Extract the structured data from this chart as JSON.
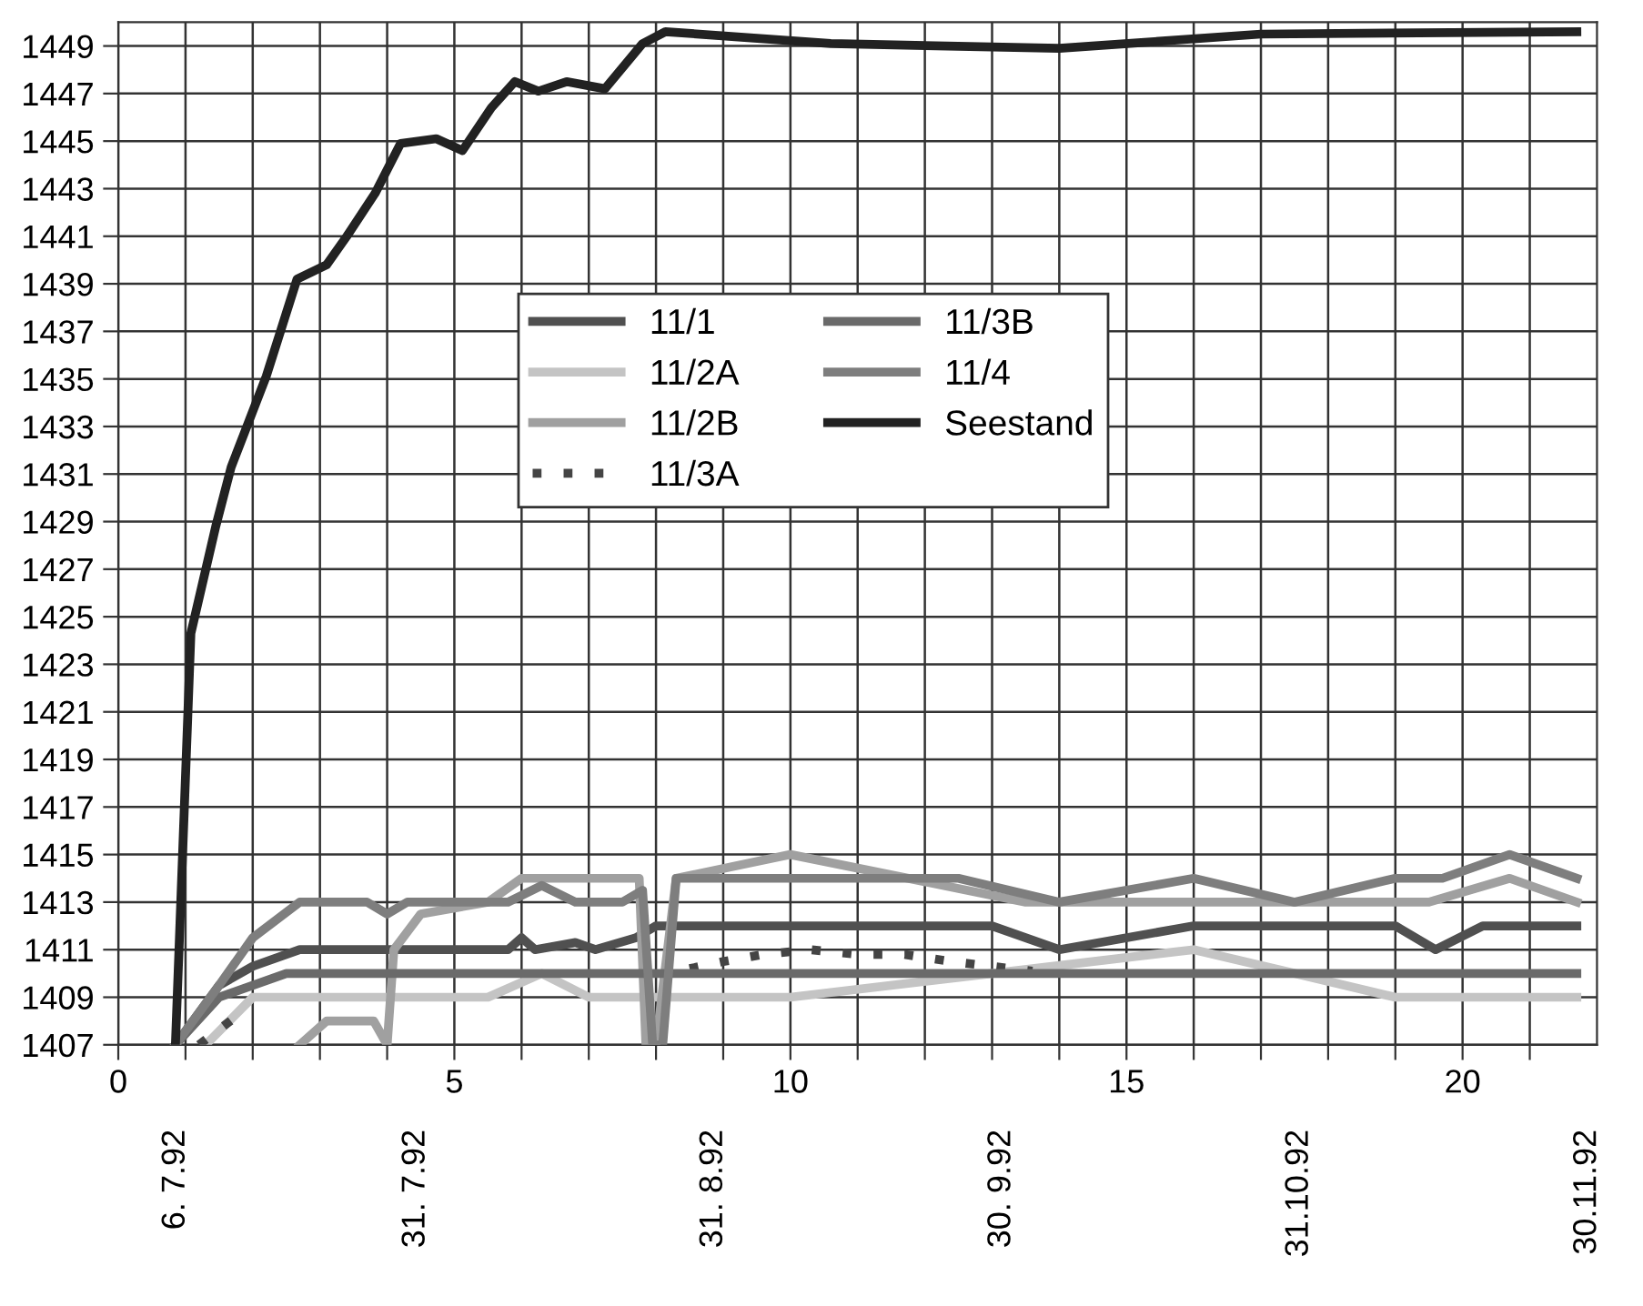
{
  "chart_data": {
    "type": "line",
    "xlim": [
      0,
      22
    ],
    "ylim": [
      1407,
      1450
    ],
    "xticks": [
      0,
      {
        "value": 1,
        "label": null
      },
      {
        "value": 2,
        "label": null
      },
      {
        "value": 3,
        "label": null
      },
      {
        "value": 4,
        "label": null
      },
      5,
      {
        "value": 6,
        "label": null
      },
      {
        "value": 7,
        "label": null
      },
      {
        "value": 8,
        "label": null
      },
      {
        "value": 9,
        "label": null
      },
      10,
      {
        "value": 11,
        "label": null
      },
      {
        "value": 12,
        "label": null
      },
      {
        "value": 13,
        "label": null
      },
      {
        "value": 14,
        "label": null
      },
      15,
      {
        "value": 16,
        "label": null
      },
      {
        "value": 17,
        "label": null
      },
      {
        "value": 18,
        "label": null
      },
      {
        "value": 19,
        "label": null
      },
      20,
      {
        "value": 21,
        "label": null
      }
    ],
    "yticks": [
      1407,
      1409,
      1411,
      1413,
      1415,
      1417,
      1419,
      1421,
      1423,
      1425,
      1427,
      1429,
      1431,
      1433,
      1435,
      1437,
      1439,
      1441,
      1443,
      1445,
      1447,
      1449
    ],
    "x2lim": [
      "1992-06-30",
      "1992-12-01"
    ],
    "x2ticks": [
      {
        "value": "1992-07-06",
        "label": "6. 7.92"
      },
      {
        "value": "1992-07-31",
        "label": "31. 7.92"
      },
      {
        "value": "1992-08-31",
        "label": "31. 8.92"
      },
      {
        "value": "1992-09-30",
        "label": "30. 9.92"
      },
      {
        "value": "1992-10-31",
        "label": "31.10.92"
      },
      {
        "value": "1992-11-30",
        "label": "30.11.92"
      }
    ],
    "grid": true,
    "legend": "center",
    "marker": "none",
    "series": [
      {
        "name": "11/1",
        "color": "#505050",
        "x": [
          0.85,
          1.5,
          2,
          2.7,
          5.8,
          6.0,
          6.2,
          6.8,
          7.1,
          7.7,
          8.0,
          8.2,
          13,
          14,
          16,
          19,
          19.6,
          20.3,
          21.7
        ],
        "values": [
          1407,
          1409.5,
          1410.3,
          1411,
          1411,
          1411.5,
          1411,
          1411.3,
          1411,
          1411.5,
          1412,
          1412,
          1412,
          1411,
          1412,
          1412,
          1411,
          1412,
          1412
        ]
      },
      {
        "name": "11/2A",
        "color": "#c4c4c4",
        "x": [
          1.3,
          2.0,
          5.5,
          6.3,
          7.0,
          10,
          13,
          16,
          17.5,
          19,
          21.7
        ],
        "values": [
          1407,
          1409,
          1409,
          1410,
          1409,
          1409,
          1410,
          1411,
          1410,
          1409,
          1409
        ]
      },
      {
        "name": "11/2B",
        "color": "#a0a0a0",
        "x": [
          2.7,
          3.1,
          3.8,
          4.0,
          4.1,
          4.5,
          5.5,
          6.0,
          7.6,
          7.75,
          7.85,
          8.0,
          8.3,
          10,
          13.5,
          14,
          19.5,
          20.7,
          21.7
        ],
        "values": [
          1407,
          1408,
          1408,
          1407,
          1411,
          1412.5,
          1413,
          1414,
          1414,
          1414,
          1407,
          1407,
          1414,
          1415,
          1413,
          1413,
          1413,
          1414,
          1413
        ]
      },
      {
        "name": "11/3A",
        "color": "#444444",
        "line_style": "dotted",
        "x": [
          1.2,
          1.9,
          5,
          8.5,
          9.0,
          9.6,
          10.3,
          11,
          11.7,
          12.4,
          13,
          13.6
        ],
        "values": [
          1407,
          1408.5,
          null,
          1410.2,
          1410.5,
          1410.8,
          1411,
          1410.8,
          1410.8,
          1410.5,
          1410.3,
          1410.1
        ]
      },
      {
        "name": "11/3B",
        "color": "#6a6a6a",
        "x": [
          0.85,
          1.5,
          2.5,
          21.7
        ],
        "values": [
          1407,
          1409,
          1410,
          1410
        ]
      },
      {
        "name": "11/4",
        "color": "#7e7e7e",
        "x": [
          0.85,
          1.5,
          2.0,
          2.7,
          3.7,
          4.0,
          4.3,
          5.8,
          6.3,
          6.8,
          7.5,
          7.8,
          7.95,
          8.1,
          8.3,
          12.5,
          14,
          16,
          17.5,
          19,
          19.7,
          20.7,
          21.7
        ],
        "values": [
          1407,
          1409.5,
          1411.5,
          1413,
          1413,
          1412.5,
          1413,
          1413,
          1413.7,
          1413,
          1413,
          1413.5,
          1407,
          1407,
          1414,
          1414,
          1413,
          1414,
          1413,
          1414,
          1414,
          1415,
          1414
        ]
      },
      {
        "name": "Seestand",
        "color": "#222222",
        "x": [
          0.85,
          1.08,
          1.45,
          1.68,
          1.94,
          2.2,
          2.66,
          3.1,
          3.4,
          3.82,
          4.2,
          4.73,
          5.12,
          5.55,
          5.9,
          6.25,
          6.67,
          7.24,
          7.8,
          8.14,
          10.6,
          14,
          17,
          21.7
        ],
        "values": [
          1407,
          1424.3,
          1428.8,
          1431.3,
          1433.2,
          1435.1,
          1439.2,
          1439.8,
          1441,
          1442.8,
          1444.9,
          1445.1,
          1444.6,
          1446.4,
          1447.5,
          1447.1,
          1447.5,
          1447.2,
          1449.1,
          1449.6,
          1449.1,
          1448.9,
          1449.5,
          1449.6
        ]
      }
    ]
  }
}
